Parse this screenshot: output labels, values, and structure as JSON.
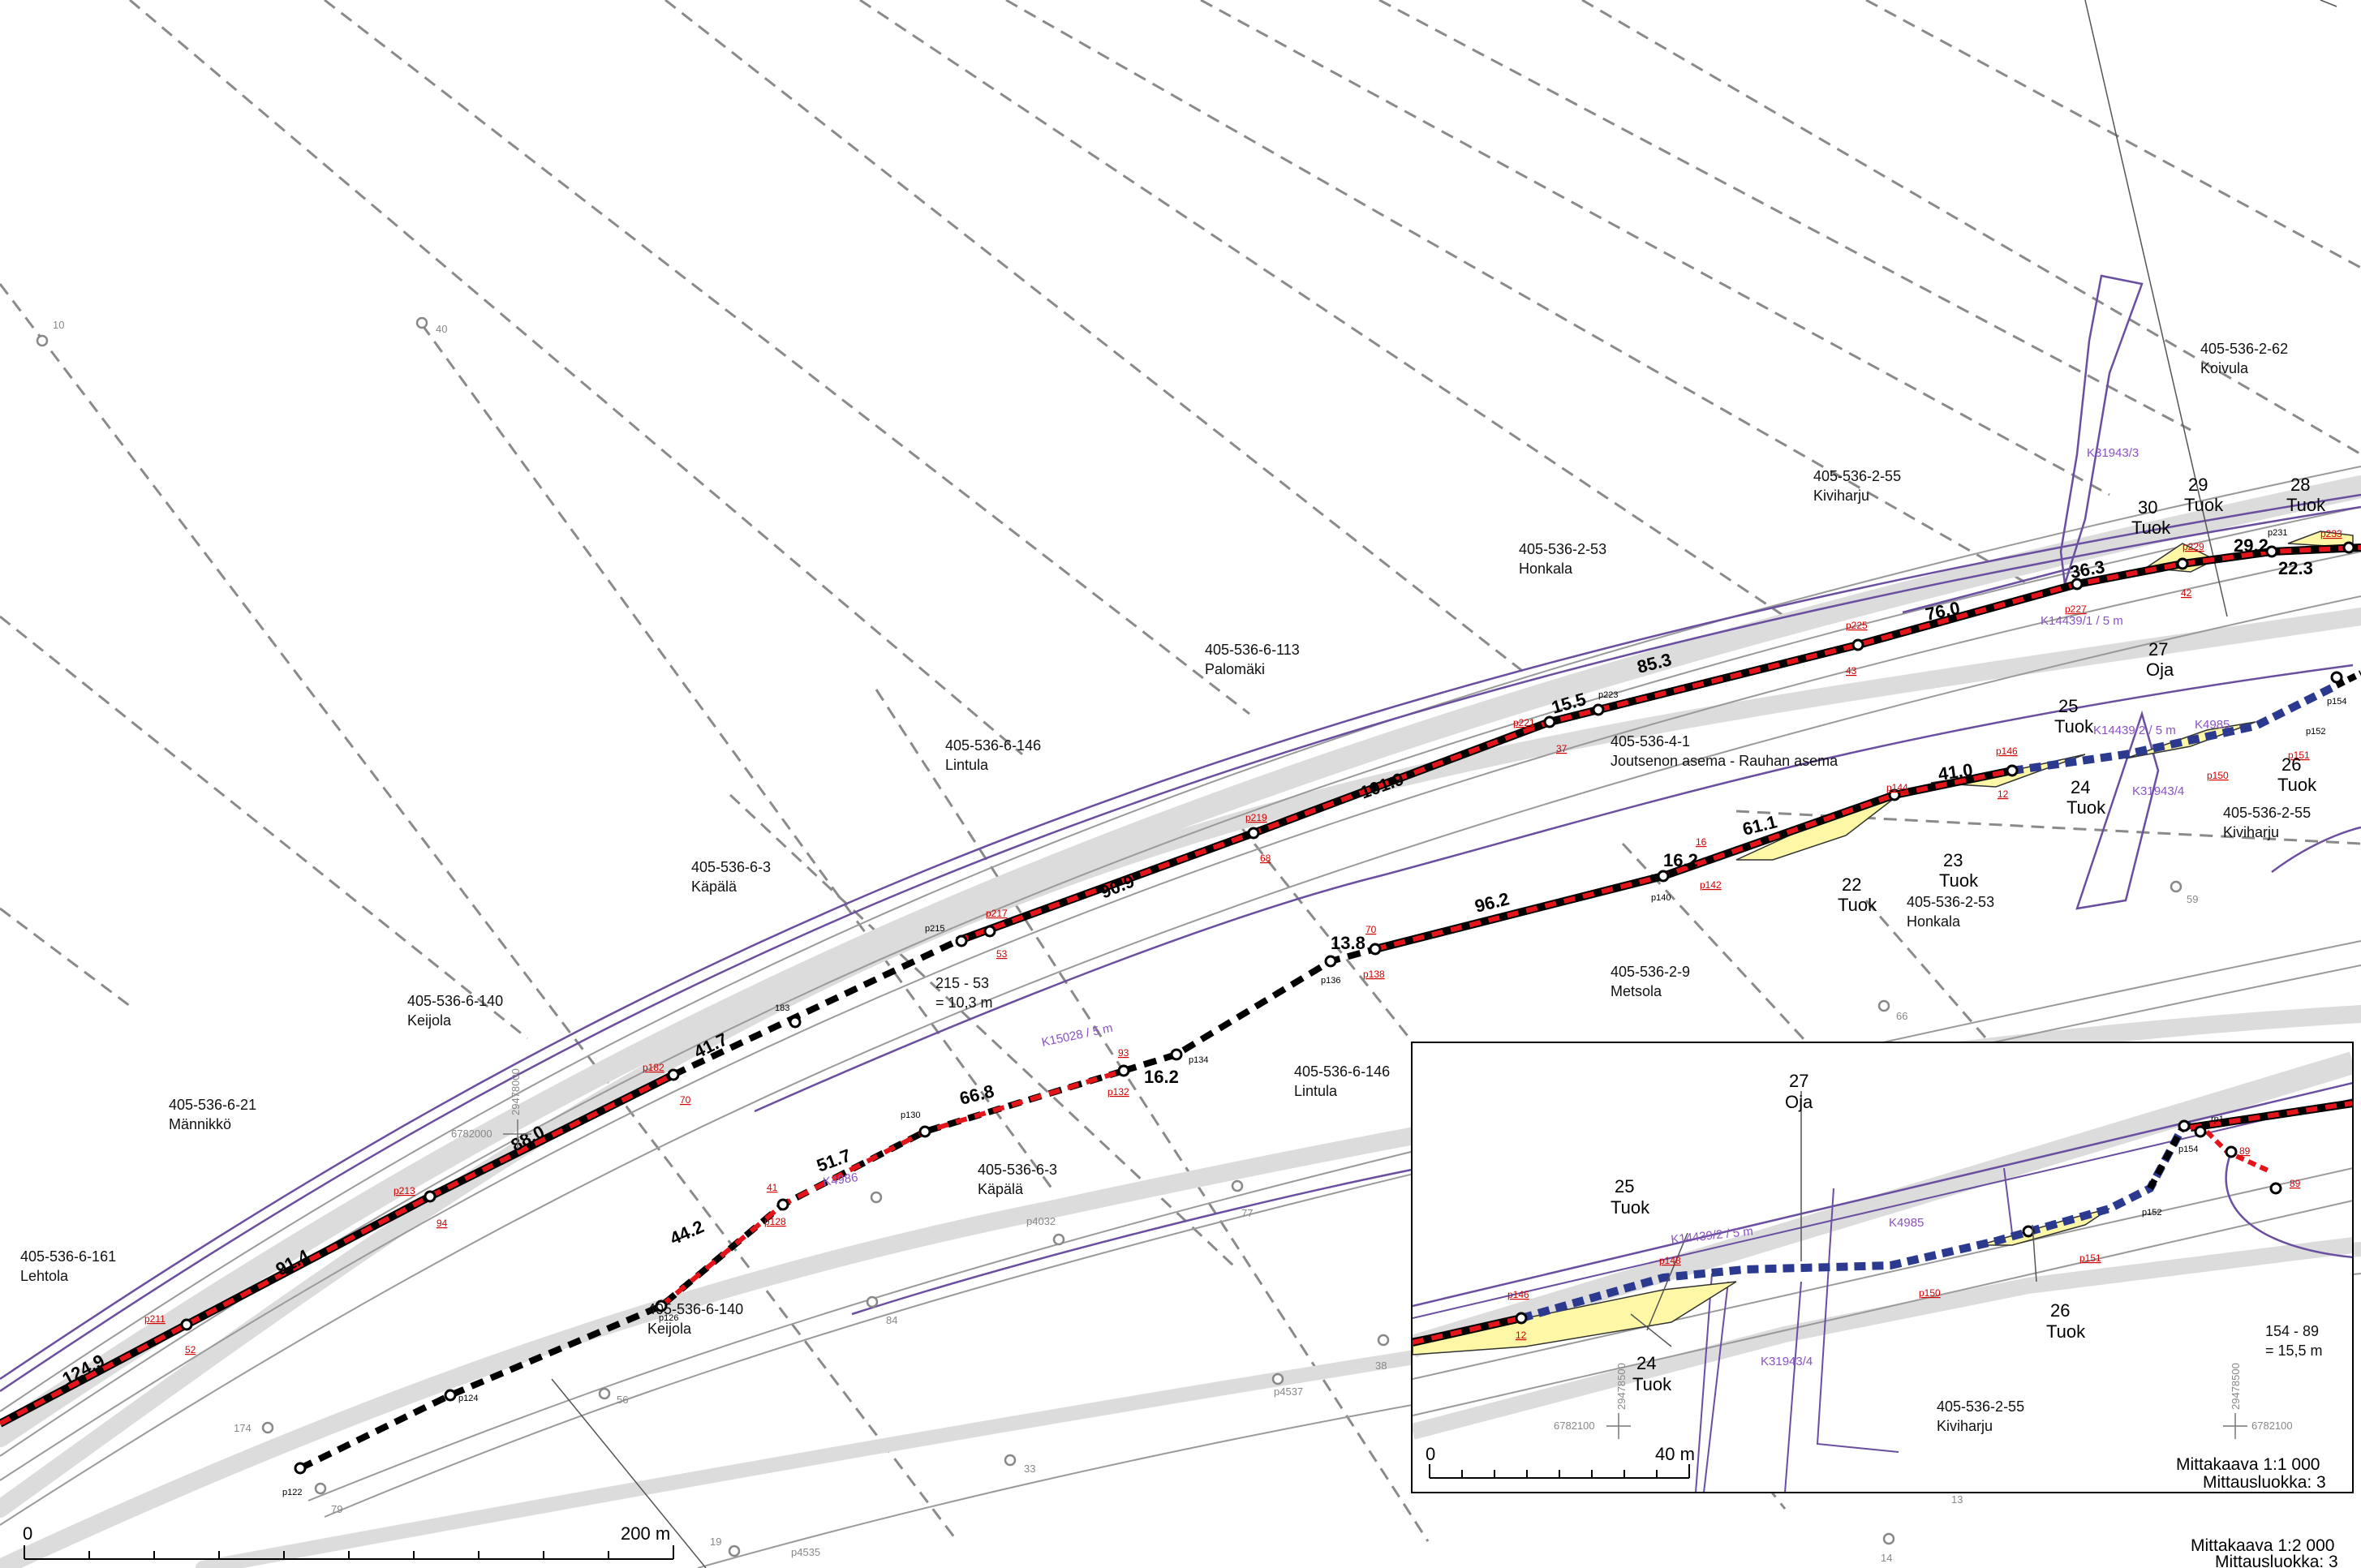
{
  "properties": [
    {
      "id": "405-536-2-62",
      "name": "Koivula"
    },
    {
      "id": "405-536-2-55",
      "name": "Kiviharju"
    },
    {
      "id": "405-536-2-53",
      "name": "Honkala"
    },
    {
      "id": "405-536-6-113",
      "name": "Palomäki"
    },
    {
      "id": "405-536-6-146",
      "name": "Lintula"
    },
    {
      "id": "405-536-6-3",
      "name": "Käpälä"
    },
    {
      "id": "405-536-6-140",
      "name": "Keijola"
    },
    {
      "id": "405-536-6-21",
      "name": "Männikkö"
    },
    {
      "id": "405-536-6-161",
      "name": "Lehtola"
    },
    {
      "id": "405-536-4-1",
      "name": "Joutsenon asema - Rauhan asema"
    },
    {
      "id": "405-536-2-9",
      "name": "Metsola"
    },
    {
      "id": "405-536-6-146",
      "name": "Lintula"
    },
    {
      "id": "405-536-6-3",
      "name": "Käpälä"
    },
    {
      "id": "405-536-6-140",
      "name": "Keijola"
    },
    {
      "id": "405-536-2-55",
      "name": "Kiviharju"
    },
    {
      "id": "405-536-2-53",
      "name": "Honkala"
    }
  ],
  "distances_upper": [
    "124.9",
    "91.4",
    "88.0",
    "41.7",
    "90.9",
    "101.9",
    "15.5",
    "85.3",
    "76.0",
    "36.3",
    "29.2",
    "22.3"
  ],
  "distances_lower": [
    "44.2",
    "51.7",
    "66.8",
    "16.2",
    "13.8",
    "96.2",
    "16.2",
    "61.1",
    "41.0"
  ],
  "upper_points": [
    "p211",
    "p213",
    "p182",
    "183",
    "p215",
    "p217",
    "p219",
    "p221",
    "p223",
    "p225",
    "p227",
    "p229",
    "p231",
    "p233"
  ],
  "upper_markers": [
    "52",
    "94",
    "70",
    "53",
    "68",
    "37",
    "43",
    "42"
  ],
  "lower_points": [
    "p122",
    "p124",
    "p126",
    "p128",
    "p130",
    "p132",
    "p134",
    "p136",
    "p138",
    "p140",
    "p142",
    "p144",
    "p146",
    "p150",
    "p151",
    "p152",
    "p154"
  ],
  "lower_markers": [
    "41",
    "93",
    "70",
    "16",
    "12"
  ],
  "features": [
    {
      "num": "30",
      "type": "Tuok"
    },
    {
      "num": "29",
      "type": "Tuok"
    },
    {
      "num": "28",
      "type": "Tuok"
    },
    {
      "num": "27",
      "type": "Oja"
    },
    {
      "num": "25",
      "type": "Tuok"
    },
    {
      "num": "26",
      "type": "Tuok"
    },
    {
      "num": "24",
      "type": "Tuok"
    },
    {
      "num": "23",
      "type": "Tuok"
    },
    {
      "num": "22",
      "type": "Tuok"
    }
  ],
  "easements": [
    "K31943/3",
    "K14439/1 / 5 m",
    "K14439/2 / 5 m",
    "K4985",
    "K31943/4",
    "K15028 / 5 m",
    "K4986"
  ],
  "boundary_markers": [
    "10",
    "40",
    "66",
    "77",
    "84",
    "56",
    "59",
    "33",
    "38",
    "174",
    "79",
    "19",
    "14",
    "13",
    "p4032",
    "p4537",
    "p4535"
  ],
  "note_215_53": {
    "line1": "215 - 53",
    "line2": "= 10,3 m"
  },
  "coords": {
    "north": "6782000",
    "east": "29478000"
  },
  "scale_bar": {
    "start": "0",
    "end": "200 m"
  },
  "scale": {
    "label": "Mittakaava 1:2 000",
    "class": "Mittausluokka: 3"
  },
  "inset": {
    "feature_27": {
      "num": "27",
      "type": "Oja"
    },
    "feature_25": {
      "num": "25",
      "type": "Tuok"
    },
    "feature_24": {
      "num": "24",
      "type": "Tuok"
    },
    "feature_26": {
      "num": "26",
      "type": "Tuok"
    },
    "easement_a": "K14439/2 / 5 m",
    "easement_b": "K4985",
    "easement_c": "K31943/4",
    "property_id": "405-536-2-55",
    "property_name": "Kiviharju",
    "points": [
      "p146",
      "p148",
      "p150",
      "p151",
      "p152",
      "p154",
      "rp1"
    ],
    "markers": [
      "12",
      "89",
      "89"
    ],
    "note_154_89": {
      "line1": "154 - 89",
      "line2": "= 15,5 m"
    },
    "coords": {
      "north": "6782100",
      "east": "29478500"
    },
    "scale_bar": {
      "start": "0",
      "end": "40 m"
    },
    "scale": {
      "label": "Mittakaava 1:1 000",
      "class": "Mittausluokka: 3"
    }
  },
  "colors": {
    "route_red": "#e4141b",
    "route_black": "#000000",
    "route_blue": "#2b3a8f",
    "road_gray": "#dcdcdc",
    "purple_lines": "#6a4fa0",
    "yellow_fill": "#fdf7a6"
  }
}
